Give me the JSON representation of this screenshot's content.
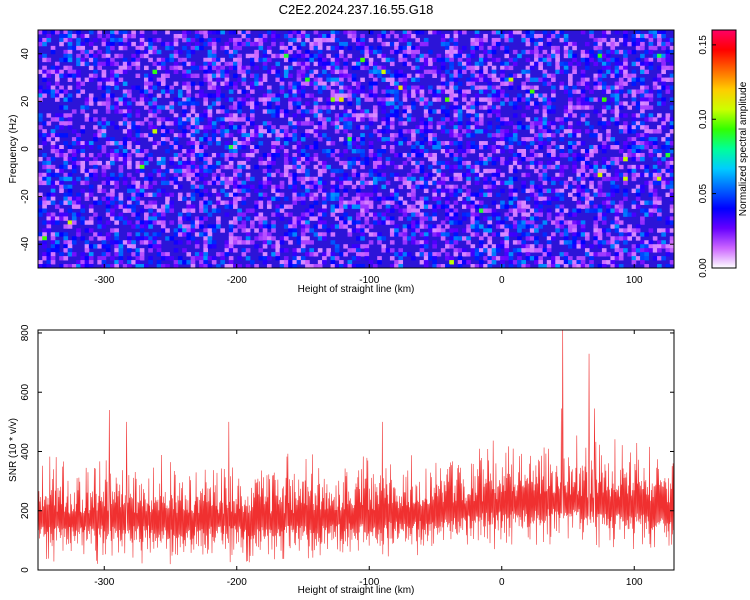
{
  "chart_data": [
    {
      "type": "heatmap",
      "title": "C2E2.2024.237.16.55.G18",
      "xlabel": "Height of straight line (km)",
      "ylabel": "Frequency (Hz)",
      "xlim": [
        -350,
        130
      ],
      "ylim": [
        -50,
        50
      ],
      "xticks": [
        -300,
        -200,
        -100,
        0,
        100
      ],
      "xtick_labels": [
        "-300",
        "-200",
        "-100",
        "0",
        "100"
      ],
      "yticks": [
        -40,
        -20,
        0,
        20,
        40
      ],
      "ytick_labels": [
        "-40",
        "-20",
        "0",
        "20",
        "40"
      ],
      "colorbar": {
        "label": "Normalized spectral amplitude",
        "range": [
          0,
          0.16
        ],
        "ticks": [
          0,
          0.05,
          0.1,
          0.15
        ],
        "tick_labels": [
          "0.00",
          "0.05",
          "0.10",
          "0.15"
        ],
        "colormap": [
          "#ffffff",
          "#cc66ff",
          "#6600ff",
          "#0000ff",
          "#0066ff",
          "#00ccff",
          "#00ff99",
          "#33ff00",
          "#ccff00",
          "#ffcc00",
          "#ff6600",
          "#ff0000",
          "#ff0066"
        ]
      },
      "background_level": 0.025,
      "typical_range": [
        0.01,
        0.06
      ],
      "peak_value": 0.12
    },
    {
      "type": "line",
      "xlabel": "Height of straight line (km)",
      "ylabel": "SNR (10 * v/v)",
      "xlim": [
        -350,
        130
      ],
      "ylim": [
        0,
        810
      ],
      "xticks": [
        -300,
        -200,
        -100,
        0,
        100
      ],
      "xtick_labels": [
        "-300",
        "-200",
        "-100",
        "0",
        "100"
      ],
      "yticks": [
        0,
        200,
        400,
        600,
        800
      ],
      "ytick_labels": [
        "0",
        "200",
        "400",
        "600",
        "800"
      ],
      "color": "#f03030",
      "baseline": [
        {
          "x": -350,
          "y": 150
        },
        {
          "x": -150,
          "y": 150
        },
        {
          "x": -50,
          "y": 170
        },
        {
          "x": 0,
          "y": 200
        },
        {
          "x": 50,
          "y": 210
        },
        {
          "x": 130,
          "y": 180
        }
      ],
      "amplitude": 260,
      "peaks": [
        {
          "x": -296,
          "y": 540
        },
        {
          "x": -283,
          "y": 500
        },
        {
          "x": -206,
          "y": 500
        },
        {
          "x": -90,
          "y": 500
        },
        {
          "x": 45,
          "y": 545
        },
        {
          "x": 46,
          "y": 810
        },
        {
          "x": 66,
          "y": 730
        },
        {
          "x": 70,
          "y": 545
        }
      ]
    }
  ]
}
